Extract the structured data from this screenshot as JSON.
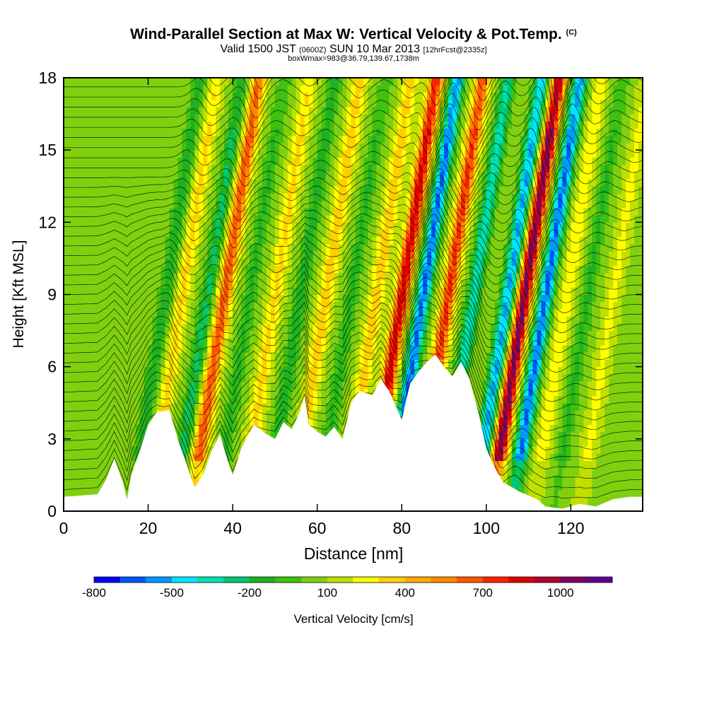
{
  "header": {
    "title": "Wind-Parallel Section at Max W: Vertical Velocity & Pot.Temp.",
    "copyright_mark": "(C)",
    "valid_prefix": "Valid 1500 JST",
    "valid_utc": "(0600Z)",
    "valid_date": "SUN 10 Mar 2013",
    "forecast": "[12hrFcst@2335z]",
    "box_info": "boxWmax=983@36.79,139.67,1738m"
  },
  "chart_data": {
    "type": "heatmap",
    "title": "Wind-Parallel Section at Max W: Vertical Velocity & Pot.Temp.",
    "xlabel": "Distance [nm]",
    "ylabel": "Height [Kft MSL]",
    "xlim": [
      0,
      137
    ],
    "ylim": [
      0,
      18
    ],
    "x_ticks": [
      0,
      20,
      40,
      60,
      80,
      100,
      120
    ],
    "y_ticks": [
      0,
      3,
      6,
      9,
      12,
      15,
      18
    ],
    "colorbar": {
      "label": "Vertical Velocity [cm/s]",
      "min": -800,
      "max": 1200,
      "step": 100,
      "tick_labels": [
        "-800",
        "-500",
        "-200",
        "100",
        "400",
        "700",
        "1000"
      ],
      "tick_values": [
        -800,
        -500,
        -200,
        100,
        400,
        700,
        1000
      ],
      "colors": [
        "#0000ff",
        "#0055ff",
        "#0099ff",
        "#00e5ff",
        "#00e0b0",
        "#00c870",
        "#20b020",
        "#40c010",
        "#80d010",
        "#c0e000",
        "#ffff00",
        "#ffd000",
        "#ffaa00",
        "#ff8800",
        "#ff5500",
        "#ff2000",
        "#e00000",
        "#b00030",
        "#800060",
        "#600090"
      ]
    },
    "terrain_height_kft": [
      [
        0,
        0.6
      ],
      [
        8,
        0.7
      ],
      [
        10,
        1.3
      ],
      [
        12,
        2.2
      ],
      [
        14,
        1.2
      ],
      [
        15,
        0.5
      ],
      [
        16,
        1.5
      ],
      [
        18,
        2.5
      ],
      [
        20,
        3.6
      ],
      [
        22,
        4.1
      ],
      [
        25,
        4.2
      ],
      [
        27,
        3.0
      ],
      [
        29,
        2.0
      ],
      [
        31,
        1.0
      ],
      [
        33,
        1.5
      ],
      [
        35,
        2.5
      ],
      [
        37,
        3.2
      ],
      [
        39,
        2.0
      ],
      [
        40,
        1.5
      ],
      [
        42,
        2.6
      ],
      [
        45,
        3.6
      ],
      [
        48,
        3.2
      ],
      [
        50,
        3.0
      ],
      [
        52,
        3.7
      ],
      [
        54,
        3.4
      ],
      [
        56,
        4.2
      ],
      [
        57,
        4.8
      ],
      [
        58,
        3.6
      ],
      [
        60,
        3.3
      ],
      [
        62,
        3.1
      ],
      [
        64,
        3.5
      ],
      [
        66,
        3.0
      ],
      [
        68,
        4.5
      ],
      [
        70,
        5.0
      ],
      [
        73,
        4.8
      ],
      [
        75,
        5.5
      ],
      [
        77,
        5.0
      ],
      [
        79,
        4.2
      ],
      [
        80,
        3.8
      ],
      [
        82,
        5.3
      ],
      [
        84,
        5.8
      ],
      [
        86,
        6.2
      ],
      [
        88,
        6.5
      ],
      [
        90,
        6.0
      ],
      [
        92,
        5.6
      ],
      [
        94,
        6.2
      ],
      [
        96,
        5.5
      ],
      [
        98,
        4.2
      ],
      [
        100,
        2.6
      ],
      [
        102,
        1.8
      ],
      [
        104,
        1.2
      ],
      [
        106,
        1.0
      ],
      [
        108,
        0.8
      ],
      [
        112,
        0.5
      ],
      [
        114,
        0.2
      ],
      [
        118,
        0.1
      ],
      [
        122,
        0.3
      ],
      [
        126,
        0.2
      ],
      [
        130,
        0.5
      ],
      [
        134,
        0.6
      ],
      [
        137,
        0.6
      ]
    ],
    "vertical_velocity_bands_cms": [
      {
        "x_base": 16,
        "w_peak": -250
      },
      {
        "x_base": 20,
        "w_peak": 250
      },
      {
        "x_base": 26,
        "w_peak": -300
      },
      {
        "x_base": 30,
        "w_peak": 600
      },
      {
        "x_base": 36,
        "w_peak": -200
      },
      {
        "x_base": 42,
        "w_peak": 250
      },
      {
        "x_base": 48,
        "w_peak": -250
      },
      {
        "x_base": 54,
        "w_peak": 300
      },
      {
        "x_base": 60,
        "w_peak": -200
      },
      {
        "x_base": 66,
        "w_peak": 300
      },
      {
        "x_base": 72,
        "w_peak": 800
      },
      {
        "x_base": 77,
        "w_peak": -700
      },
      {
        "x_base": 83,
        "w_peak": 650
      },
      {
        "x_base": 89,
        "w_peak": -450
      },
      {
        "x_base": 97,
        "w_peak": -600
      },
      {
        "x_base": 101,
        "w_peak": 983
      },
      {
        "x_base": 106,
        "w_peak": -700
      },
      {
        "x_base": 111,
        "w_peak": 200
      },
      {
        "x_base": 116,
        "w_peak": -200
      },
      {
        "x_base": 122,
        "w_peak": 150
      }
    ],
    "contour_field": "Potential Temperature",
    "grid": false
  },
  "colors": {
    "frame": "#000000",
    "terrain": "#ffffff",
    "background": "#ffffff"
  }
}
